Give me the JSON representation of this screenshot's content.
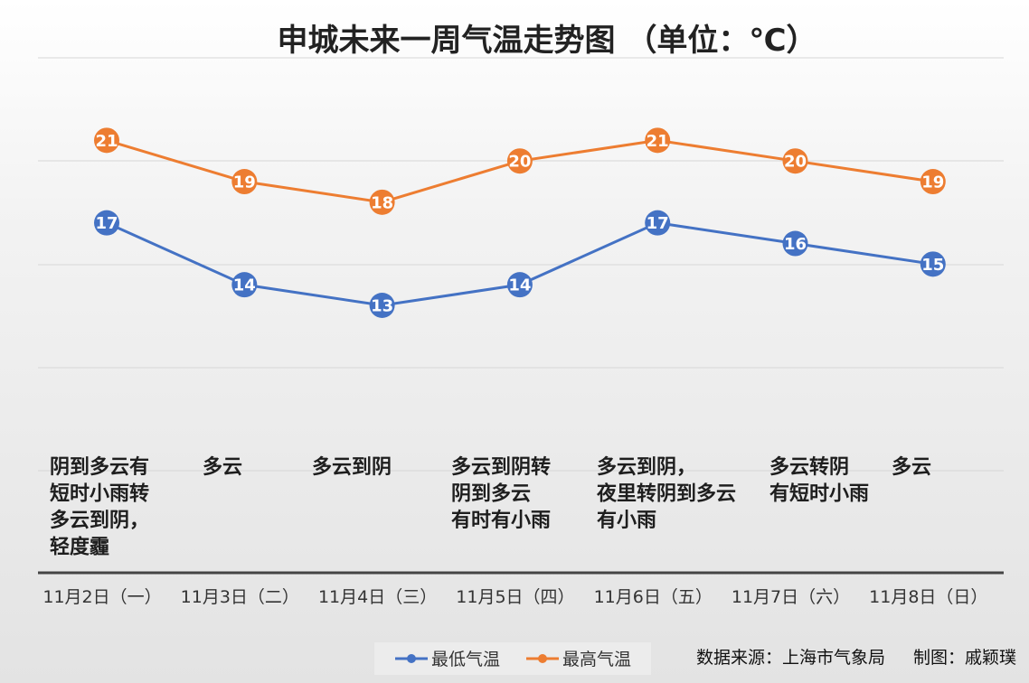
{
  "chart_data": {
    "type": "line",
    "title": "申城未来一周气温走势图 （单位：℃）",
    "categories": [
      "11月2日（一）",
      "11月3日（二）",
      "11月4日（三）",
      "11月5日（四）",
      "11月6日（五）",
      "11月7日（六）",
      "11月8日（日）"
    ],
    "series": [
      {
        "name": "最低气温",
        "values": [
          17,
          14,
          13,
          14,
          17,
          16,
          15
        ],
        "color": "#4472c4"
      },
      {
        "name": "最高气温",
        "values": [
          21,
          19,
          18,
          20,
          21,
          20,
          19
        ],
        "color": "#ed7d31"
      }
    ],
    "weather": [
      [
        "阴到多云有",
        "短时小雨转",
        "多云到阴，",
        "轻度霾"
      ],
      [
        "多云"
      ],
      [
        "多云到阴"
      ],
      [
        "多云到阴转",
        "阴到多云",
        "有时有小雨"
      ],
      [
        "多云到阴，",
        "夜里转阴到多云",
        "有小雨"
      ],
      [
        "多云转阴",
        "有短时小雨"
      ],
      [
        "多云"
      ]
    ],
    "grid": true,
    "legend_position": "bottom",
    "source": "数据来源：上海市气象局",
    "credit": "制图：戚颖璞"
  }
}
